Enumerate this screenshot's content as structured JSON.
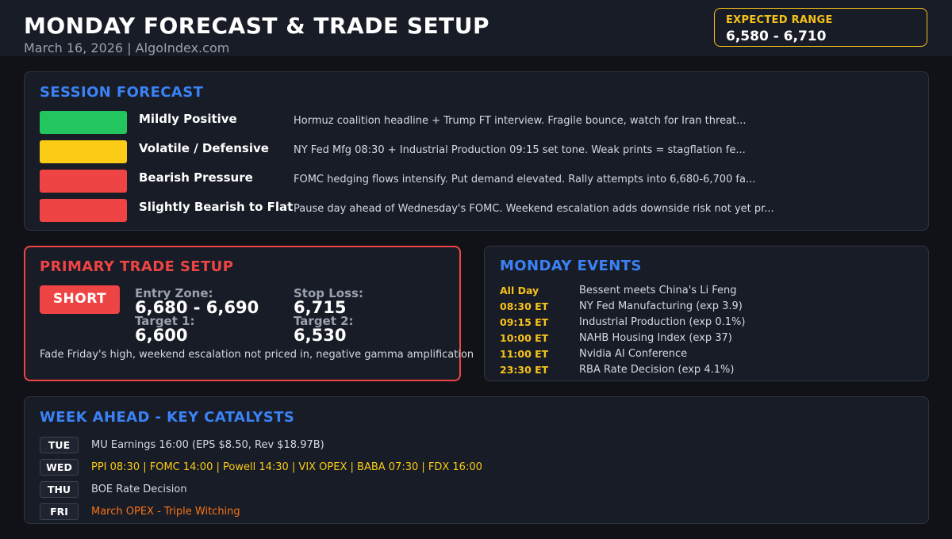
{
  "header": {
    "title": "MONDAY FORECAST & TRADE SETUP",
    "subtitle": "March 16, 2026  |  AlgoIndex.com",
    "range_label": "EXPECTED RANGE",
    "range_value": "6,580 - 6,710"
  },
  "forecast": {
    "title": "SESSION FORECAST",
    "rows": [
      {
        "color": "#22c55e",
        "label": "Mildly Positive",
        "desc": "Hormuz coalition headline + Trump FT interview. Fragile bounce, watch for Iran threat..."
      },
      {
        "color": "#facc15",
        "label": "Volatile / Defensive",
        "desc": "NY Fed Mfg 08:30 + Industrial Production 09:15 set tone. Weak prints = stagflation fe..."
      },
      {
        "color": "#ef4444",
        "label": "Bearish Pressure",
        "desc": "FOMC hedging flows intensify. Put demand elevated. Rally attempts into 6,680-6,700 fa..."
      },
      {
        "color": "#ef4444",
        "label": "Slightly Bearish to Flat",
        "desc": "Pause day ahead of Wednesday's FOMC. Weekend escalation adds downside risk not yet pr..."
      }
    ]
  },
  "trade": {
    "title": "PRIMARY TRADE SETUP",
    "direction": "SHORT",
    "entry_label": "Entry Zone:",
    "entry_value": "6,680 - 6,690",
    "stop_label": "Stop Loss:",
    "stop_value": "6,715",
    "target1_label": "Target 1:",
    "target1_value": "6,600",
    "target2_label": "Target 2:",
    "target2_value": "6,530",
    "note": "Fade Friday's high, weekend escalation not priced in, negative gamma amplification",
    "accent_color": "#ef4444"
  },
  "events": {
    "title": "MONDAY EVENTS",
    "items": [
      {
        "time": "All Day",
        "text": "Bessent meets China's Li Feng"
      },
      {
        "time": "08:30 ET",
        "text": "NY Fed Manufacturing (exp 3.9)"
      },
      {
        "time": "09:15 ET",
        "text": "Industrial Production (exp 0.1%)"
      },
      {
        "time": "10:00 ET",
        "text": "NAHB Housing Index (exp 37)"
      },
      {
        "time": "11:00 ET",
        "text": "Nvidia AI Conference"
      },
      {
        "time": "23:30 ET",
        "text": "RBA Rate Decision (exp 4.1%)"
      }
    ]
  },
  "week": {
    "title": "WEEK AHEAD - KEY CATALYSTS",
    "items": [
      {
        "day": "TUE",
        "text": "MU Earnings 16:00 (EPS $8.50, Rev $18.97B)",
        "color": "#d5d8de"
      },
      {
        "day": "WED",
        "text": "PPI 08:30 | FOMC 14:00 | Powell 14:30 | VIX OPEX | BABA 07:30 | FDX 16:00",
        "color": "#facc15"
      },
      {
        "day": "THU",
        "text": "BOE Rate Decision",
        "color": "#d5d8de"
      },
      {
        "day": "FRI",
        "text": "March OPEX - Triple Witching",
        "color": "#f97316"
      }
    ]
  },
  "colors": {
    "accent_blue": "#3b82f6",
    "accent_yellow": "#f7c21b",
    "accent_red": "#ef4444",
    "accent_orange": "#f97316",
    "accent_green": "#22c55e"
  }
}
